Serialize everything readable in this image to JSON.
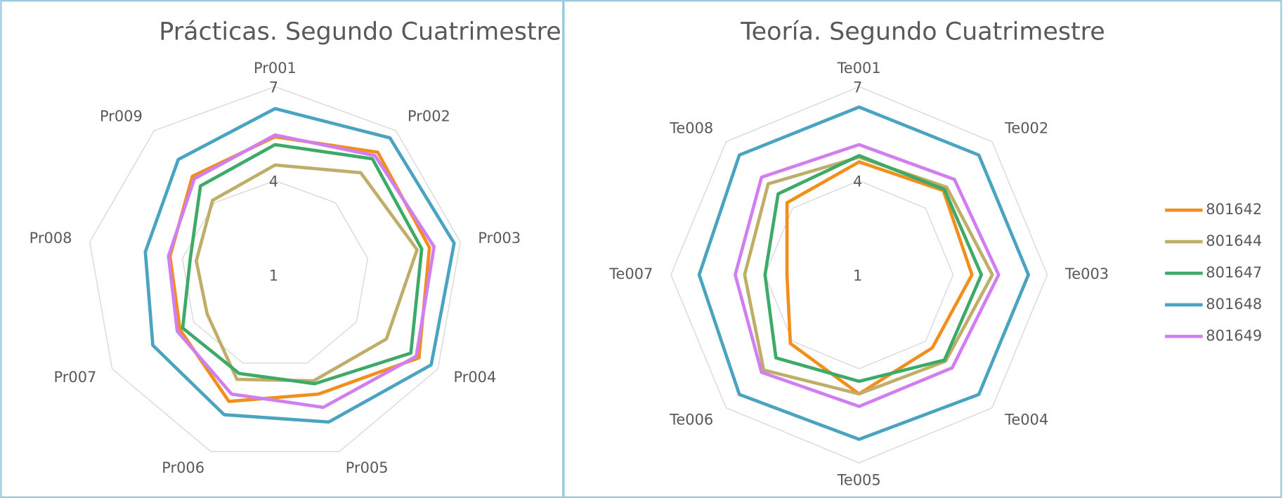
{
  "chart_data": [
    {
      "type": "radar",
      "title": "Prácticas. Segundo Cuatrimestre",
      "categories": [
        "Pr001",
        "Pr002",
        "Pr003",
        "Pr004",
        "Pr005",
        "Pr006",
        "Pr007",
        "Pr008",
        "Pr009"
      ],
      "rlim": [
        1,
        7
      ],
      "rticks": [
        1,
        4,
        7
      ],
      "grid": true,
      "series": [
        {
          "name": "801642",
          "color": "#f28e1c",
          "values": [
            5.4,
            6.1,
            6.0,
            6.3,
            5.05,
            5.3,
            4.5,
            4.4,
            5.1
          ]
        },
        {
          "name": "801644",
          "color": "#bfae6a",
          "values": [
            4.5,
            5.25,
            5.6,
            5.1,
            4.6,
            4.55,
            3.5,
            3.55,
            4.1
          ]
        },
        {
          "name": "801647",
          "color": "#3daa67",
          "values": [
            5.15,
            5.83,
            5.75,
            6.0,
            4.7,
            4.35,
            4.4,
            3.75,
            4.7
          ]
        },
        {
          "name": "801648",
          "color": "#4aa3c0",
          "values": [
            6.3,
            6.7,
            6.8,
            6.75,
            6.0,
            5.75,
            5.5,
            5.2,
            5.8
          ]
        },
        {
          "name": "801649",
          "color": "#d07ef0",
          "values": [
            5.46,
            5.96,
            6.15,
            6.2,
            5.5,
            5.05,
            4.6,
            4.45,
            5.0
          ]
        }
      ]
    },
    {
      "type": "radar",
      "title": "Teoría. Segundo Cuatrimestre",
      "categories": [
        "Te001",
        "Te002",
        "Te003",
        "Te004",
        "Te005",
        "Te006",
        "Te007",
        "Te008"
      ],
      "rlim": [
        1,
        7
      ],
      "rticks": [
        1,
        4,
        7
      ],
      "grid": true,
      "legend": "right",
      "series": [
        {
          "name": "801642",
          "color": "#f28e1c",
          "values": [
            4.6,
            4.8,
            4.6,
            4.3,
            4.8,
            4.1,
            3.3,
            4.25
          ]
        },
        {
          "name": "801644",
          "color": "#bfae6a",
          "values": [
            4.75,
            4.95,
            5.25,
            4.9,
            4.8,
            5.3,
            4.65,
            5.1
          ]
        },
        {
          "name": "801647",
          "color": "#3daa67",
          "values": [
            4.8,
            4.85,
            4.9,
            4.85,
            4.4,
            4.75,
            4.0,
            4.65
          ]
        },
        {
          "name": "801648",
          "color": "#4aa3c0",
          "values": [
            6.35,
            6.4,
            6.4,
            6.4,
            6.25,
            6.4,
            6.1,
            6.4
          ]
        },
        {
          "name": "801649",
          "color": "#d07ef0",
          "values": [
            5.15,
            5.3,
            5.45,
            5.2,
            5.2,
            5.4,
            4.95,
            5.4
          ]
        }
      ]
    }
  ]
}
